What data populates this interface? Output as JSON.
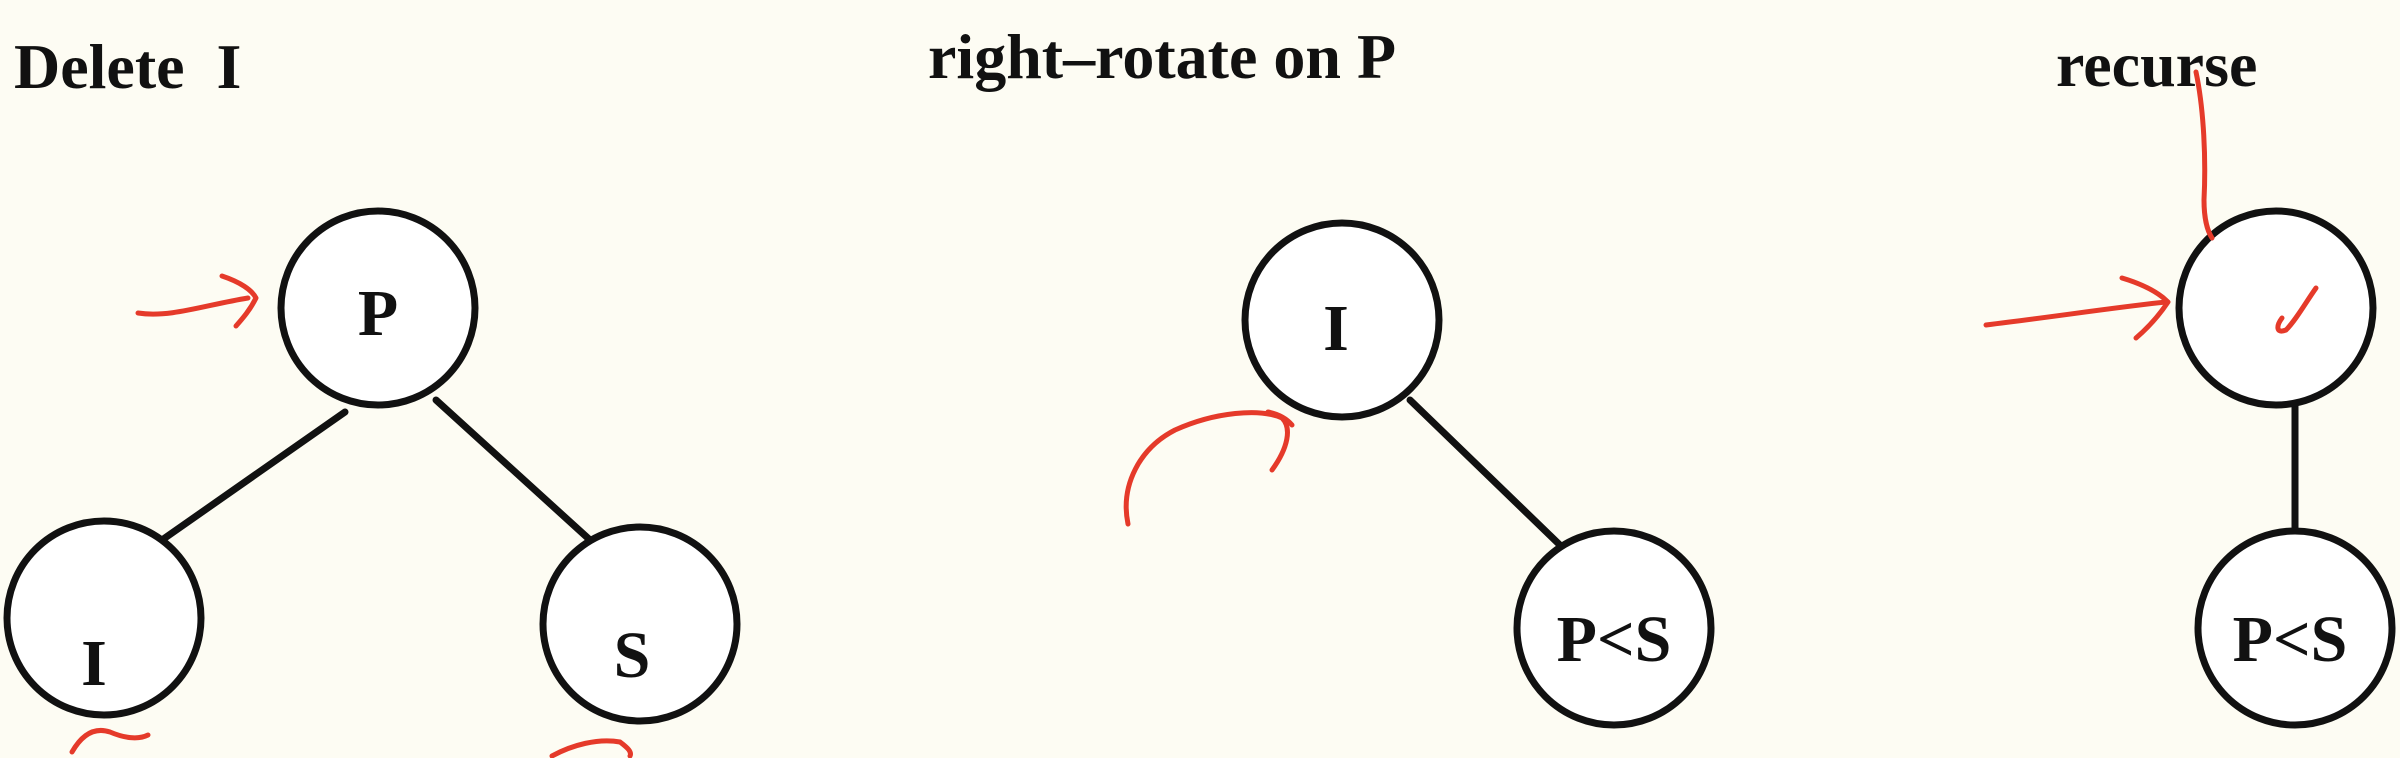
{
  "colors": {
    "background": "#fdfcf3",
    "ink": "#111111",
    "annotation": "#e53a2a"
  },
  "panels": {
    "delete": {
      "title": "Delete  I",
      "nodes": {
        "p": "P",
        "i": "I",
        "s": "S"
      }
    },
    "rotate": {
      "title": "right–rotate on P",
      "nodes": {
        "i": "I",
        "ps": "P<S"
      }
    },
    "recurse": {
      "title": "recurse",
      "nodes": {
        "top": "",
        "ps": "P<S"
      }
    }
  },
  "annotations": {
    "type": "hand-drawn red arrows and ticks",
    "color": "#e53a2a"
  }
}
